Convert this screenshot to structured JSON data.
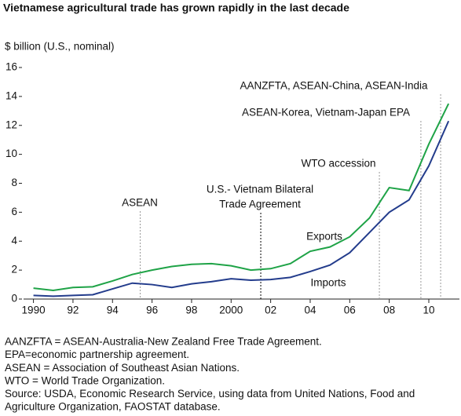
{
  "chart_data": {
    "type": "line",
    "title": "Vietnamese agricultural trade has grown rapidly in the last decade",
    "y_axis_label": "$ billion (U.S., nominal)",
    "x": [
      1990,
      1991,
      1992,
      1993,
      1994,
      1995,
      1996,
      1997,
      1998,
      1999,
      2000,
      2001,
      2002,
      2003,
      2004,
      2005,
      2006,
      2007,
      2008,
      2009,
      2010,
      2011
    ],
    "xlim": [
      1989.5,
      2011.55
    ],
    "xticks": [
      1990,
      {
        "value": 1992,
        "label": "92"
      },
      {
        "value": 1994,
        "label": "94"
      },
      {
        "value": 1996,
        "label": "96"
      },
      {
        "value": 1998,
        "label": "98"
      },
      2000,
      {
        "value": 2002,
        "label": "02"
      },
      {
        "value": 2004,
        "label": "04"
      },
      {
        "value": 2006,
        "label": "06"
      },
      {
        "value": 2008,
        "label": "08"
      },
      {
        "value": 2010,
        "label": "10"
      }
    ],
    "ylim": [
      0,
      16
    ],
    "yticks": [
      0,
      2,
      4,
      6,
      8,
      10,
      12,
      14,
      16
    ],
    "series": [
      {
        "name": "Exports",
        "color": "#1fa347",
        "values": [
          0.75,
          0.6,
          0.8,
          0.85,
          1.25,
          1.7,
          2.0,
          2.25,
          2.4,
          2.45,
          2.3,
          2.0,
          2.1,
          2.45,
          3.3,
          3.6,
          4.3,
          5.6,
          7.7,
          7.5,
          10.7,
          13.5
        ]
      },
      {
        "name": "Imports",
        "color": "#233c8c",
        "values": [
          0.25,
          0.2,
          0.25,
          0.3,
          0.7,
          1.1,
          1.0,
          0.8,
          1.05,
          1.2,
          1.4,
          1.3,
          1.35,
          1.5,
          1.9,
          2.35,
          3.2,
          4.6,
          6.0,
          6.85,
          9.2,
          12.3
        ]
      }
    ],
    "annotations": [
      {
        "lines": [
          "ASEAN"
        ],
        "x": 1995.4,
        "color": "#999999"
      },
      {
        "lines": [
          "U.S.- Vietnam Bilateral",
          "Trade Agreement"
        ],
        "x": 2001.5,
        "color": "#000000"
      },
      {
        "lines": [
          "WTO accession"
        ],
        "x": 2007.5,
        "color": "#999999"
      },
      {
        "lines": [
          "ASEAN-Korea, Vietnam-Japan EPA"
        ],
        "x": 2009.6,
        "color": "#999999"
      },
      {
        "lines": [
          "AANZFTA, ASEAN-China, ASEAN-India"
        ],
        "x": 2010.6,
        "color": "#999999"
      }
    ],
    "notes": [
      "AANZFTA = ASEAN-Australia-New Zealand Free Trade Agreement.",
      "EPA=economic partnership agreement.",
      "ASEAN = Association of Southeast Asian Nations.",
      "WTO = World Trade Organization.",
      "Source:  USDA, Economic Research Service, using data from United Nations, Food and",
      "Agriculture Organization, FAOSTAT database."
    ]
  }
}
